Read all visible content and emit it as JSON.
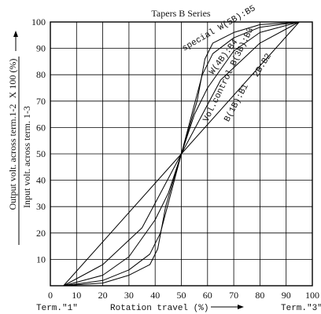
{
  "chart_data": {
    "type": "line",
    "title": "Tapers B Series",
    "xlabel": "Rotation travel (%)",
    "ylabel_numerator": "Output volt. across term.1-2",
    "ylabel_denominator": "Input volt. across term. 1-3",
    "ylabel_factor": "X 100 (%)",
    "xlim": [
      0,
      100
    ],
    "ylim": [
      0,
      100
    ],
    "x_ticks": [
      0,
      10,
      20,
      30,
      40,
      50,
      60,
      70,
      80,
      90,
      100
    ],
    "y_ticks": [
      10,
      20,
      30,
      40,
      50,
      60,
      70,
      80,
      90,
      100
    ],
    "grid": true,
    "terminal_labels": {
      "left": "Term.\"1\"",
      "right": "Term.\"3\""
    },
    "series": [
      {
        "name": "B(1B):B1",
        "x": [
          5,
          50,
          95
        ],
        "y": [
          0,
          50,
          100
        ]
      },
      {
        "name": "2B:B2",
        "x": [
          5,
          20,
          35,
          50,
          65,
          80,
          95
        ],
        "y": [
          0,
          8,
          22,
          50,
          78,
          92,
          100
        ]
      },
      {
        "name": "Vol.control B(3B):B3",
        "x": [
          5,
          20,
          30,
          40,
          45,
          50,
          55,
          60,
          70,
          80,
          95
        ],
        "y": [
          0,
          4,
          11,
          25,
          35,
          50,
          65,
          75,
          89,
          96,
          100
        ]
      },
      {
        "name": "W(4B):B4",
        "x": [
          5,
          20,
          30,
          38,
          42,
          50,
          58,
          62,
          70,
          80,
          95
        ],
        "y": [
          0,
          2,
          6,
          12,
          20,
          50,
          80,
          88,
          94,
          98,
          100
        ]
      },
      {
        "name": "special W(5B):B5",
        "x": [
          5,
          20,
          30,
          38,
          41,
          44,
          50,
          56,
          59,
          62,
          70,
          80,
          95
        ],
        "y": [
          0,
          1,
          4,
          8,
          14,
          30,
          50,
          70,
          86,
          92,
          96,
          99,
          100
        ]
      }
    ]
  }
}
